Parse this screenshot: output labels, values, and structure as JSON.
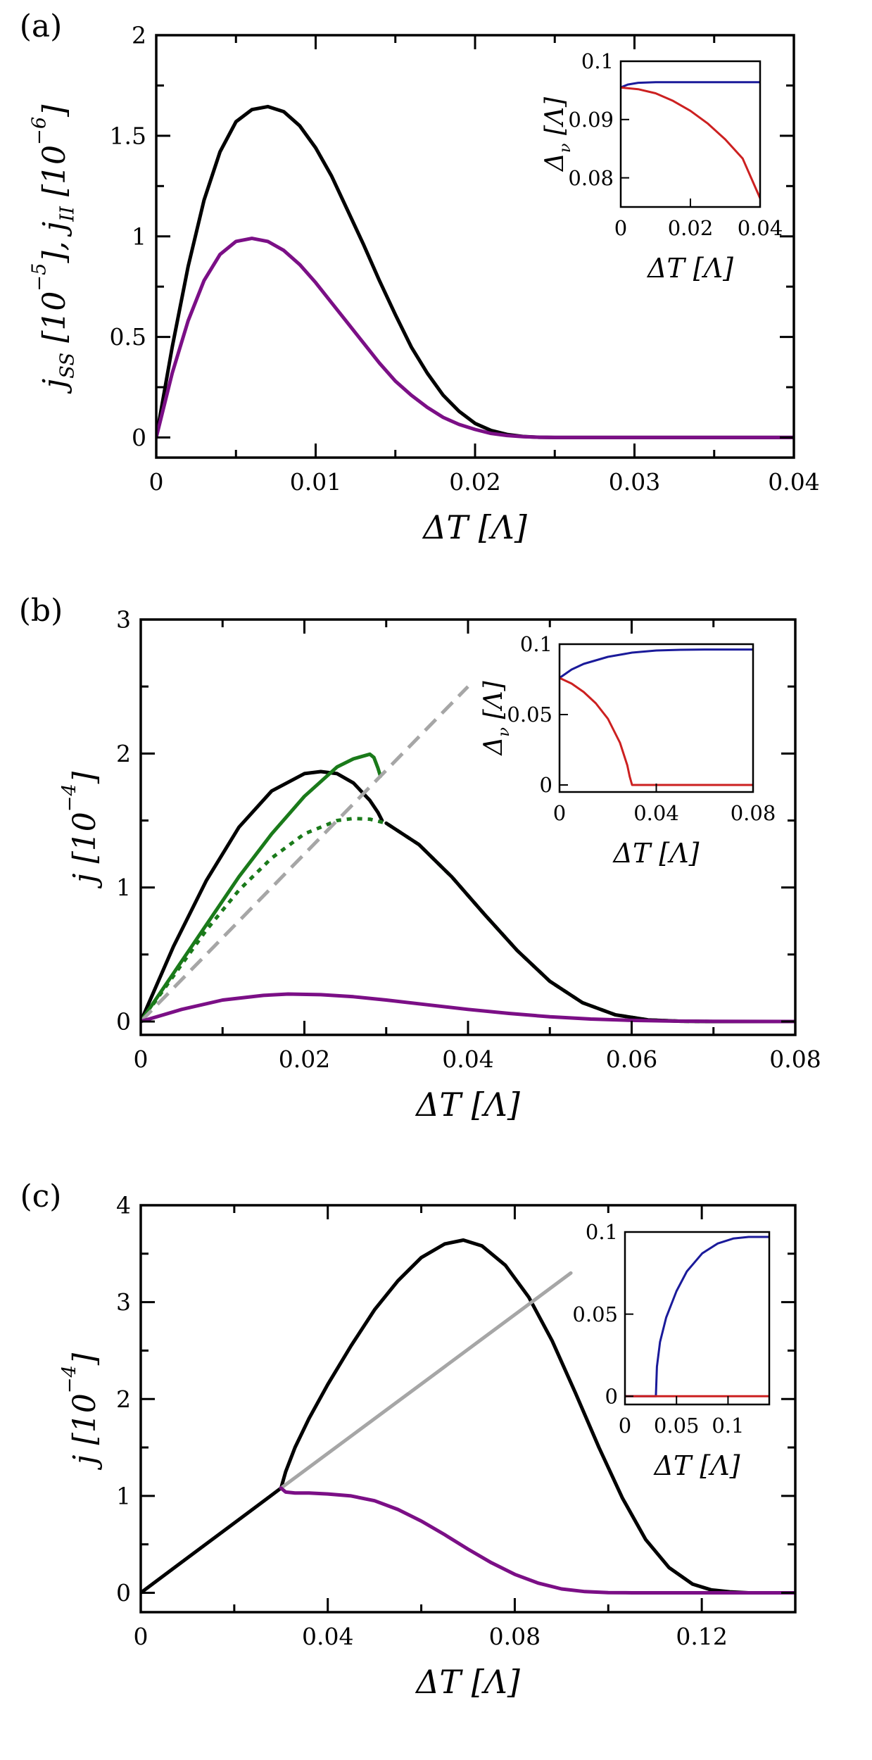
{
  "figure": {
    "panels": [
      {
        "label": "(a)",
        "xlabel": "ΔT [Λ]",
        "ylabel": "j_SS [10^-5], j_II [10^-6]",
        "ylabel_parts": [
          "j",
          "SS",
          " [10",
          "−5",
          "], j",
          "II",
          " [10",
          "−6",
          "]"
        ]
      },
      {
        "label": "(b)",
        "xlabel": "ΔT [Λ]",
        "ylabel": "j [10^-4]",
        "ylabel_parts": [
          "j [10",
          "−4",
          "]"
        ]
      },
      {
        "label": "(c)",
        "xlabel": "ΔT [Λ]",
        "ylabel": "j [10^-4]",
        "ylabel_parts": [
          "j [10",
          "−4",
          "]"
        ]
      }
    ],
    "inset_xlabel": "ΔT [Λ]",
    "inset_ylabel": "Δν [Λ]",
    "inset_ylabel_parts": [
      "Δ",
      "ν",
      " [Λ]"
    ]
  },
  "colors": {
    "black": "#000000",
    "purple": "#7b0f86",
    "green": "#1a7a1a",
    "gray": "#a6a6a6",
    "blue": "#1a1a9a",
    "red": "#cc2020"
  },
  "chart_data": [
    {
      "panel": "(a)",
      "type": "line",
      "xlabel": "ΔT [Λ]",
      "ylabel": "j_SS [10^-5], j_II [10^-6]",
      "xlim": [
        0,
        0.04
      ],
      "ylim": [
        -0.1,
        2
      ],
      "xticks": [
        0,
        0.01,
        0.02,
        0.03,
        0.04
      ],
      "xtick_labels": [
        "0",
        "0.01",
        "0.02",
        "0.03",
        "0.04"
      ],
      "yticks": [
        0,
        0.5,
        1,
        1.5,
        2
      ],
      "ytick_labels": [
        "0",
        "0.5",
        "1",
        "1.5",
        "2"
      ],
      "series": [
        {
          "name": "j_SS",
          "color": "black",
          "style": "solid",
          "x": [
            0,
            0.001,
            0.002,
            0.003,
            0.004,
            0.005,
            0.006,
            0.007,
            0.008,
            0.009,
            0.01,
            0.011,
            0.012,
            0.013,
            0.014,
            0.015,
            0.016,
            0.017,
            0.018,
            0.019,
            0.02,
            0.021,
            0.022,
            0.023,
            0.024,
            0.025,
            0.03,
            0.035,
            0.04
          ],
          "y": [
            0,
            0.45,
            0.85,
            1.18,
            1.42,
            1.57,
            1.63,
            1.645,
            1.62,
            1.55,
            1.44,
            1.3,
            1.13,
            0.96,
            0.78,
            0.61,
            0.45,
            0.32,
            0.21,
            0.13,
            0.07,
            0.035,
            0.015,
            0.005,
            0.001,
            0,
            0,
            0,
            0
          ]
        },
        {
          "name": "j_II",
          "color": "purple",
          "style": "solid",
          "x": [
            0,
            0.001,
            0.002,
            0.003,
            0.004,
            0.005,
            0.006,
            0.007,
            0.008,
            0.009,
            0.01,
            0.011,
            0.012,
            0.013,
            0.014,
            0.015,
            0.016,
            0.017,
            0.018,
            0.019,
            0.02,
            0.021,
            0.022,
            0.023,
            0.024,
            0.025,
            0.03,
            0.035,
            0.04
          ],
          "y": [
            0,
            0.32,
            0.58,
            0.78,
            0.91,
            0.975,
            0.99,
            0.975,
            0.93,
            0.86,
            0.77,
            0.67,
            0.57,
            0.47,
            0.37,
            0.28,
            0.21,
            0.15,
            0.1,
            0.065,
            0.04,
            0.02,
            0.01,
            0.004,
            0.001,
            0,
            0,
            0,
            0
          ]
        }
      ],
      "inset": {
        "xlabel": "ΔT [Λ]",
        "ylabel": "Δν [Λ]",
        "xlim": [
          0,
          0.04
        ],
        "ylim": [
          0.075,
          0.1
        ],
        "xticks": [
          0,
          0.02,
          0.04
        ],
        "xtick_labels": [
          "0",
          "0.02",
          "0.04"
        ],
        "yticks": [
          0.08,
          0.09,
          0.1
        ],
        "ytick_labels": [
          "0.08",
          "0.09",
          "0.1"
        ],
        "series": [
          {
            "name": "blue",
            "color": "blue",
            "x": [
              0,
              0.002,
              0.005,
              0.01,
              0.02,
              0.03,
              0.04
            ],
            "y": [
              0.0955,
              0.096,
              0.0963,
              0.0964,
              0.0964,
              0.0964,
              0.0964
            ]
          },
          {
            "name": "red",
            "color": "red",
            "x": [
              0,
              0.005,
              0.01,
              0.015,
              0.02,
              0.025,
              0.03,
              0.035,
              0.04
            ],
            "y": [
              0.0955,
              0.0952,
              0.0945,
              0.0932,
              0.0915,
              0.0893,
              0.0866,
              0.0833,
              0.0765
            ]
          }
        ]
      }
    },
    {
      "panel": "(b)",
      "type": "line",
      "xlabel": "ΔT [Λ]",
      "ylabel": "j [10^-4]",
      "xlim": [
        0,
        0.08
      ],
      "ylim": [
        -0.1,
        3
      ],
      "xticks": [
        0,
        0.02,
        0.04,
        0.06,
        0.08
      ],
      "xtick_labels": [
        "0",
        "0.02",
        "0.04",
        "0.06",
        "0.08"
      ],
      "yticks": [
        0,
        1,
        2,
        3
      ],
      "ytick_labels": [
        "0",
        "1",
        "2",
        "3"
      ],
      "series": [
        {
          "name": "black",
          "color": "black",
          "style": "solid",
          "x": [
            0,
            0.004,
            0.008,
            0.012,
            0.016,
            0.02,
            0.022,
            0.024,
            0.026,
            0.028,
            0.029,
            0.0295
          ],
          "y": [
            0,
            0.56,
            1.05,
            1.45,
            1.72,
            1.85,
            1.865,
            1.85,
            1.78,
            1.65,
            1.56,
            1.5
          ]
        },
        {
          "name": "green",
          "color": "green",
          "style": "solid",
          "x": [
            0,
            0.004,
            0.008,
            0.012,
            0.016,
            0.02,
            0.024,
            0.026,
            0.028,
            0.0285,
            0.029,
            0.0293
          ],
          "y": [
            0,
            0.36,
            0.72,
            1.08,
            1.4,
            1.68,
            1.9,
            1.96,
            1.995,
            1.97,
            1.89,
            1.83
          ]
        },
        {
          "name": "green-dotted",
          "color": "green",
          "style": "dotted",
          "x": [
            0,
            0.004,
            0.008,
            0.012,
            0.016,
            0.02,
            0.024,
            0.026,
            0.028,
            0.03,
            0.034,
            0.038,
            0.042,
            0.046,
            0.05,
            0.054,
            0.058,
            0.062,
            0.066,
            0.07,
            0.08
          ],
          "y": [
            0,
            0.34,
            0.68,
            0.98,
            1.22,
            1.4,
            1.5,
            1.515,
            1.51,
            1.48,
            1.32,
            1.08,
            0.8,
            0.53,
            0.3,
            0.14,
            0.05,
            0.012,
            0.002,
            0,
            0
          ]
        },
        {
          "name": "black-tail",
          "color": "black",
          "style": "solid",
          "x": [
            0.03,
            0.034,
            0.038,
            0.042,
            0.046,
            0.05,
            0.054,
            0.058,
            0.062,
            0.066,
            0.07,
            0.08
          ],
          "y": [
            1.48,
            1.32,
            1.08,
            0.8,
            0.53,
            0.3,
            0.14,
            0.05,
            0.012,
            0.002,
            0,
            0
          ]
        },
        {
          "name": "gray-dashed",
          "color": "gray",
          "style": "dashed",
          "x": [
            0,
            0.04
          ],
          "y": [
            0,
            2.5
          ]
        },
        {
          "name": "purple",
          "color": "purple",
          "style": "solid",
          "x": [
            0,
            0.005,
            0.01,
            0.015,
            0.018,
            0.022,
            0.026,
            0.03,
            0.035,
            0.04,
            0.045,
            0.05,
            0.055,
            0.06,
            0.065,
            0.07,
            0.08
          ],
          "y": [
            0,
            0.09,
            0.16,
            0.195,
            0.205,
            0.2,
            0.185,
            0.16,
            0.125,
            0.09,
            0.06,
            0.035,
            0.018,
            0.008,
            0.003,
            0.001,
            0
          ]
        }
      ],
      "inset": {
        "xlabel": "ΔT [Λ]",
        "ylabel": "Δν [Λ]",
        "xlim": [
          0,
          0.08
        ],
        "ylim": [
          -0.005,
          0.1
        ],
        "xticks": [
          0,
          0.04,
          0.08
        ],
        "xtick_labels": [
          "0",
          "0.04",
          "0.08"
        ],
        "yticks": [
          0,
          0.05,
          0.1
        ],
        "ytick_labels": [
          "0",
          "0.05",
          "0.1"
        ],
        "series": [
          {
            "name": "blue",
            "color": "blue",
            "x": [
              0,
              0.005,
              0.01,
              0.02,
              0.03,
              0.04,
              0.05,
              0.06,
              0.07,
              0.08
            ],
            "y": [
              0.076,
              0.082,
              0.086,
              0.091,
              0.094,
              0.0955,
              0.096,
              0.0962,
              0.0962,
              0.0962
            ]
          },
          {
            "name": "red",
            "color": "red",
            "x": [
              0,
              0.005,
              0.01,
              0.015,
              0.02,
              0.025,
              0.028,
              0.029,
              0.03,
              0.04,
              0.05,
              0.06,
              0.07,
              0.08
            ],
            "y": [
              0.076,
              0.072,
              0.066,
              0.058,
              0.047,
              0.03,
              0.014,
              0.006,
              0,
              0,
              0,
              0,
              0,
              0
            ]
          }
        ]
      }
    },
    {
      "panel": "(c)",
      "type": "line",
      "xlabel": "ΔT [Λ]",
      "ylabel": "j [10^-4]",
      "xlim": [
        0,
        0.14
      ],
      "ylim": [
        -0.2,
        4
      ],
      "xticks": [
        0,
        0.04,
        0.08,
        0.12
      ],
      "xtick_labels": [
        "0",
        "0.04",
        "0.08",
        "0.12"
      ],
      "yticks": [
        0,
        1,
        2,
        3,
        4
      ],
      "ytick_labels": [
        "0",
        "1",
        "2",
        "3",
        "4"
      ],
      "series": [
        {
          "name": "black",
          "color": "black",
          "style": "solid",
          "x": [
            0,
            0.01,
            0.02,
            0.03,
            0.031,
            0.033,
            0.036,
            0.04,
            0.045,
            0.05,
            0.055,
            0.06,
            0.065,
            0.069,
            0.073,
            0.078,
            0.083,
            0.088,
            0.093,
            0.098,
            0.103,
            0.108,
            0.113,
            0.118,
            0.122,
            0.126,
            0.13,
            0.14
          ],
          "y": [
            0,
            0.36,
            0.72,
            1.08,
            1.25,
            1.5,
            1.8,
            2.15,
            2.55,
            2.92,
            3.22,
            3.46,
            3.6,
            3.64,
            3.58,
            3.38,
            3.05,
            2.6,
            2.06,
            1.5,
            0.98,
            0.55,
            0.26,
            0.09,
            0.03,
            0.01,
            0,
            0
          ]
        },
        {
          "name": "gray",
          "color": "gray",
          "style": "solid",
          "x": [
            0.03,
            0.092
          ],
          "y": [
            1.08,
            3.3
          ]
        },
        {
          "name": "purple",
          "color": "purple",
          "style": "solid",
          "x": [
            0.03,
            0.031,
            0.033,
            0.036,
            0.04,
            0.045,
            0.05,
            0.055,
            0.06,
            0.065,
            0.07,
            0.075,
            0.08,
            0.085,
            0.09,
            0.095,
            0.1,
            0.105,
            0.14
          ],
          "y": [
            1.08,
            1.04,
            1.03,
            1.03,
            1.02,
            1.0,
            0.95,
            0.86,
            0.74,
            0.6,
            0.45,
            0.31,
            0.19,
            0.1,
            0.04,
            0.012,
            0.002,
            0,
            0
          ]
        }
      ],
      "inset": {
        "xlabel": "ΔT [Λ]",
        "ylabel": "",
        "xlim": [
          0,
          0.14
        ],
        "ylim": [
          -0.005,
          0.1
        ],
        "xticks": [
          0,
          0.05,
          0.1
        ],
        "xtick_labels": [
          "0",
          "0.05",
          "0.1"
        ],
        "yticks": [
          0,
          0.05,
          0.1
        ],
        "ytick_labels": [
          "0",
          "0.05",
          "0.1"
        ],
        "series": [
          {
            "name": "blue",
            "color": "blue",
            "x": [
              0,
              0.029,
              0.03,
              0.031,
              0.034,
              0.04,
              0.05,
              0.06,
              0.075,
              0.09,
              0.105,
              0.12,
              0.14
            ],
            "y": [
              0,
              0,
              0,
              0.018,
              0.033,
              0.048,
              0.064,
              0.076,
              0.087,
              0.093,
              0.096,
              0.097,
              0.097
            ]
          },
          {
            "name": "red",
            "color": "red",
            "x": [
              0,
              0.14
            ],
            "y": [
              0,
              0
            ]
          }
        ]
      }
    }
  ]
}
